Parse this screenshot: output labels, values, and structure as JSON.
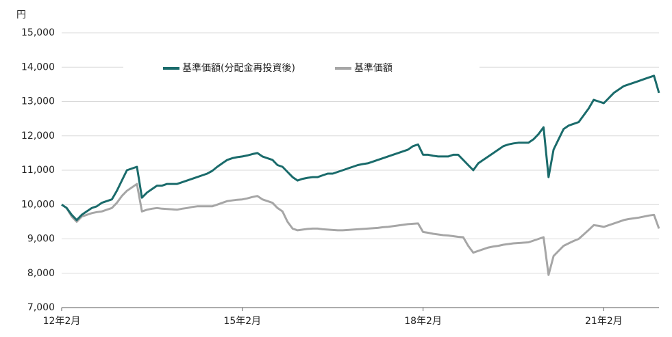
{
  "chart_data": {
    "type": "line",
    "y_unit": "円",
    "categories": [
      "12年2月",
      null,
      null,
      null,
      null,
      null,
      null,
      null,
      null,
      null,
      null,
      null,
      null,
      null,
      null,
      null,
      null,
      null,
      null,
      null,
      null,
      null,
      null,
      null,
      null,
      null,
      null,
      null,
      null,
      null,
      null,
      null,
      null,
      null,
      null,
      null,
      "15年2月",
      null,
      null,
      null,
      null,
      null,
      null,
      null,
      null,
      null,
      null,
      null,
      null,
      null,
      null,
      null,
      null,
      null,
      null,
      null,
      null,
      null,
      null,
      null,
      null,
      null,
      null,
      null,
      null,
      null,
      null,
      null,
      null,
      null,
      null,
      null,
      "18年2月",
      null,
      null,
      null,
      null,
      null,
      null,
      null,
      null,
      null,
      null,
      null,
      null,
      null,
      null,
      null,
      null,
      null,
      null,
      null,
      null,
      null,
      null,
      null,
      null,
      null,
      null,
      null,
      null,
      null,
      null,
      null,
      null,
      null,
      null,
      null,
      "21年2月",
      null,
      null,
      null,
      null,
      null,
      null,
      null,
      null,
      null,
      null,
      null
    ],
    "series": [
      {
        "name": "基準価額(分配金再投資後)",
        "color": "#1a6b6b",
        "values": [
          10000,
          9900,
          9700,
          9550,
          9700,
          9800,
          9900,
          9950,
          10050,
          10100,
          10150,
          10400,
          10700,
          11000,
          11050,
          11100,
          10200,
          10350,
          10450,
          10550,
          10550,
          10600,
          10600,
          10600,
          10650,
          10700,
          10750,
          10800,
          10850,
          10900,
          10980,
          11100,
          11200,
          11300,
          11350,
          11380,
          11400,
          11430,
          11470,
          11500,
          11400,
          11350,
          11300,
          11150,
          11100,
          10950,
          10800,
          10700,
          10750,
          10780,
          10800,
          10800,
          10850,
          10900,
          10900,
          10950,
          11000,
          11050,
          11100,
          11150,
          11180,
          11200,
          11250,
          11300,
          11350,
          11400,
          11450,
          11500,
          11550,
          11600,
          11700,
          11750,
          11450,
          11450,
          11420,
          11400,
          11400,
          11400,
          11450,
          11450,
          11300,
          11150,
          11000,
          11200,
          11300,
          11400,
          11500,
          11600,
          11700,
          11750,
          11780,
          11800,
          11800,
          11800,
          11900,
          12050,
          12250,
          10800,
          11600,
          11900,
          12200,
          12300,
          12350,
          12400,
          12600,
          12800,
          13050,
          13000,
          12950,
          13100,
          13250,
          13350,
          13450,
          13500,
          13550,
          13600,
          13650,
          13700,
          13750,
          13250
        ]
      },
      {
        "name": "基準価額",
        "color": "#a6a6a6",
        "values": [
          10000,
          9900,
          9650,
          9500,
          9650,
          9700,
          9750,
          9780,
          9800,
          9850,
          9900,
          10050,
          10250,
          10400,
          10500,
          10600,
          9800,
          9850,
          9880,
          9900,
          9880,
          9870,
          9860,
          9850,
          9880,
          9900,
          9930,
          9950,
          9950,
          9950,
          9950,
          10000,
          10050,
          10100,
          10120,
          10140,
          10150,
          10180,
          10220,
          10250,
          10150,
          10100,
          10050,
          9900,
          9800,
          9500,
          9300,
          9250,
          9270,
          9290,
          9300,
          9300,
          9280,
          9270,
          9260,
          9250,
          9250,
          9260,
          9270,
          9280,
          9290,
          9300,
          9310,
          9320,
          9340,
          9350,
          9370,
          9390,
          9410,
          9430,
          9440,
          9450,
          9200,
          9180,
          9150,
          9130,
          9110,
          9100,
          9080,
          9060,
          9050,
          8800,
          8600,
          8650,
          8700,
          8750,
          8780,
          8800,
          8830,
          8850,
          8870,
          8880,
          8890,
          8900,
          8950,
          9000,
          9050,
          7950,
          8500,
          8650,
          8800,
          8870,
          8940,
          9000,
          9130,
          9260,
          9400,
          9380,
          9350,
          9400,
          9450,
          9500,
          9550,
          9580,
          9600,
          9620,
          9650,
          9680,
          9700,
          9300
        ]
      }
    ],
    "ylim": [
      7000,
      15000
    ],
    "yticks": [
      {
        "value": 7000,
        "label": "7,000"
      },
      {
        "value": 8000,
        "label": "8,000"
      },
      {
        "value": 9000,
        "label": "9,000"
      },
      {
        "value": 10000,
        "label": "10,000"
      },
      {
        "value": 11000,
        "label": "11,000"
      },
      {
        "value": 12000,
        "label": "12,000"
      },
      {
        "value": 13000,
        "label": "13,000"
      },
      {
        "value": 14000,
        "label": "14,000"
      },
      {
        "value": 15000,
        "label": "15,000"
      }
    ],
    "grid": true,
    "legend": "top"
  }
}
